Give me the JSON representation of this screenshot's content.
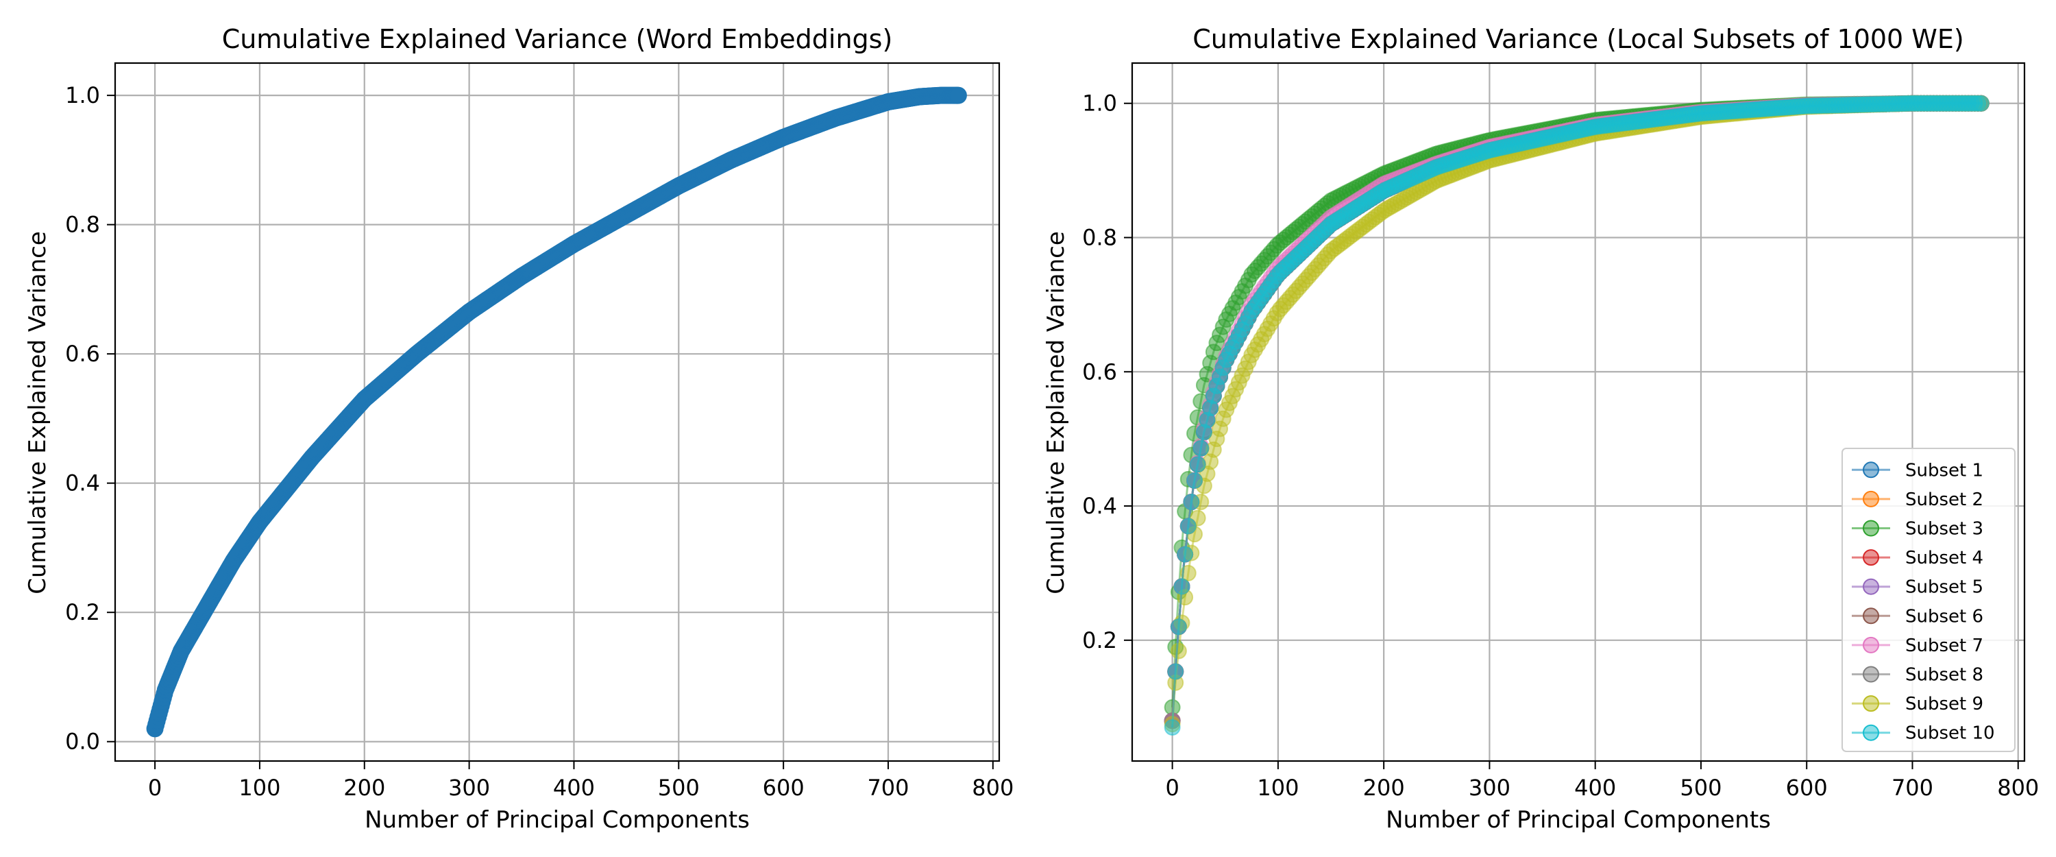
{
  "chart_data": [
    {
      "type": "scatter",
      "title": "Cumulative Explained Variance (Word Embeddings)",
      "xlabel": "Number of Principal Components",
      "ylabel": "Cumulative Explained Variance",
      "xlim": [
        -38,
        806
      ],
      "ylim": [
        -0.03,
        1.05
      ],
      "xticks": [
        0,
        100,
        200,
        300,
        400,
        500,
        600,
        700,
        800
      ],
      "yticks": [
        0.0,
        0.2,
        0.4,
        0.6,
        0.8,
        1.0
      ],
      "grid": true,
      "series": [
        {
          "color": "#1f77b4",
          "x": [
            0,
            10,
            25,
            50,
            75,
            100,
            150,
            200,
            250,
            300,
            350,
            400,
            450,
            500,
            550,
            600,
            650,
            700,
            730,
            750,
            767
          ],
          "y": [
            0.02,
            0.08,
            0.14,
            0.21,
            0.28,
            0.34,
            0.44,
            0.53,
            0.6,
            0.665,
            0.72,
            0.77,
            0.815,
            0.86,
            0.9,
            0.935,
            0.965,
            0.99,
            0.998,
            1.0,
            1.0
          ]
        }
      ]
    },
    {
      "type": "line",
      "title": "Cumulative Explained Variance (Local Subsets of 1000 WE)",
      "xlabel": "Number of Principal Components",
      "ylabel": "Cumulative Explained Variance",
      "xlim": [
        -38,
        806
      ],
      "ylim": [
        0.02,
        1.06
      ],
      "xticks": [
        0,
        100,
        200,
        300,
        400,
        500,
        600,
        700,
        800
      ],
      "yticks": [
        0.2,
        0.4,
        0.6,
        0.8,
        1.0
      ],
      "grid": true,
      "legend": "lower-right",
      "x": [
        0,
        2,
        5,
        10,
        15,
        20,
        30,
        40,
        50,
        75,
        100,
        150,
        200,
        250,
        300,
        400,
        500,
        600,
        700,
        767
      ],
      "series": [
        {
          "name": "Subset 1",
          "color": "#1f77b4",
          "y": [
            0.08,
            0.13,
            0.2,
            0.3,
            0.37,
            0.43,
            0.51,
            0.57,
            0.615,
            0.69,
            0.745,
            0.82,
            0.87,
            0.905,
            0.93,
            0.965,
            0.985,
            0.996,
            1.0,
            1.0
          ]
        },
        {
          "name": "Subset 2",
          "color": "#ff7f0e",
          "y": [
            0.08,
            0.13,
            0.2,
            0.3,
            0.37,
            0.43,
            0.51,
            0.57,
            0.615,
            0.69,
            0.745,
            0.82,
            0.87,
            0.905,
            0.93,
            0.965,
            0.985,
            0.996,
            1.0,
            1.0
          ]
        },
        {
          "name": "Subset 3",
          "color": "#2ca02c",
          "y": [
            0.1,
            0.16,
            0.25,
            0.36,
            0.44,
            0.5,
            0.58,
            0.635,
            0.675,
            0.745,
            0.79,
            0.855,
            0.895,
            0.925,
            0.945,
            0.975,
            0.99,
            0.998,
            1.0,
            1.0
          ]
        },
        {
          "name": "Subset 4",
          "color": "#d62728",
          "y": [
            0.08,
            0.13,
            0.2,
            0.3,
            0.37,
            0.43,
            0.51,
            0.57,
            0.615,
            0.69,
            0.745,
            0.82,
            0.87,
            0.905,
            0.93,
            0.965,
            0.985,
            0.996,
            1.0,
            1.0
          ]
        },
        {
          "name": "Subset 5",
          "color": "#9467bd",
          "y": [
            0.08,
            0.13,
            0.2,
            0.3,
            0.37,
            0.43,
            0.51,
            0.57,
            0.615,
            0.69,
            0.745,
            0.82,
            0.87,
            0.905,
            0.93,
            0.965,
            0.985,
            0.996,
            1.0,
            1.0
          ]
        },
        {
          "name": "Subset 6",
          "color": "#8c564b",
          "y": [
            0.08,
            0.13,
            0.2,
            0.3,
            0.37,
            0.43,
            0.51,
            0.57,
            0.615,
            0.69,
            0.745,
            0.82,
            0.87,
            0.905,
            0.93,
            0.965,
            0.985,
            0.996,
            1.0,
            1.0
          ]
        },
        {
          "name": "Subset 7",
          "color": "#e377c2",
          "y": [
            0.08,
            0.13,
            0.2,
            0.3,
            0.37,
            0.43,
            0.515,
            0.575,
            0.62,
            0.7,
            0.755,
            0.83,
            0.88,
            0.91,
            0.935,
            0.968,
            0.987,
            0.997,
            1.0,
            1.0
          ]
        },
        {
          "name": "Subset 8",
          "color": "#7f7f7f",
          "y": [
            0.08,
            0.13,
            0.2,
            0.3,
            0.37,
            0.43,
            0.51,
            0.57,
            0.615,
            0.69,
            0.745,
            0.82,
            0.87,
            0.905,
            0.93,
            0.965,
            0.985,
            0.996,
            1.0,
            1.0
          ]
        },
        {
          "name": "Subset 9",
          "color": "#bcbd22",
          "y": [
            0.075,
            0.12,
            0.17,
            0.24,
            0.3,
            0.35,
            0.43,
            0.49,
            0.54,
            0.625,
            0.69,
            0.78,
            0.84,
            0.885,
            0.915,
            0.955,
            0.98,
            0.995,
            1.0,
            1.0
          ]
        },
        {
          "name": "Subset 10",
          "color": "#17becf",
          "y": [
            0.07,
            0.13,
            0.2,
            0.3,
            0.37,
            0.43,
            0.51,
            0.57,
            0.615,
            0.69,
            0.745,
            0.82,
            0.87,
            0.905,
            0.93,
            0.965,
            0.985,
            0.996,
            1.0,
            1.0
          ]
        }
      ]
    }
  ]
}
